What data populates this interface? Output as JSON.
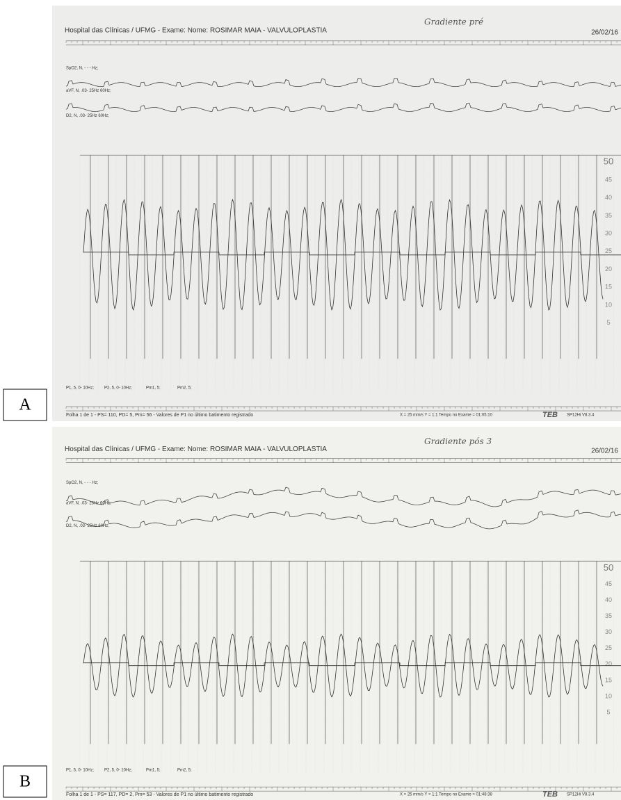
{
  "panels": [
    {
      "label": "A",
      "header": "Hospital das Clínicas / UFMG  -  Exame:  Nome: ROSIMAR MAIA  -  VALVULOPLASTIA",
      "handwritten": "Gradiente pré",
      "date": "26/02/16",
      "channels": [
        "SpO2, N, - - - Hz;",
        "aVF, N, .03- 25Hz 60Hz;",
        "D2, N, .03- 25Hz 60Hz;"
      ],
      "scale_labels": [
        "50",
        "45",
        "40",
        "35",
        "30",
        "25",
        "20",
        "15",
        "10",
        "5"
      ],
      "pressure_channels": [
        "P1, 5, 0- 10Hz;",
        "P2, 5, 0- 10Hz;",
        "Pm1, 5;",
        "Pm2, 5;"
      ],
      "footer": "Folha 1 de 1 - PS= 110, PD=  5, Pm=  56  -  Valores de  P1 no último batimento registrado",
      "settings": "X =  25 mm/s   Y = 1:1   Tempo no Exame = 01:05:10",
      "logo": "TEB",
      "version": "SP12Hi V8.3.4"
    },
    {
      "label": "B",
      "header": "Hospital das Clínicas / UFMG  -  Exame:  Nome: ROSIMAR MAIA  -  VALVULOPLASTIA",
      "handwritten": "Gradiente pós 3",
      "date": "26/02/16",
      "channels": [
        "SpO2, N, - - - Hz;",
        "aVF, N, .03- 25Hz 60Hz;",
        "D2, N, .03- 25Hz 60Hz;"
      ],
      "scale_labels": [
        "50",
        "45",
        "40",
        "35",
        "30",
        "25",
        "20",
        "15",
        "10",
        "5"
      ],
      "pressure_channels": [
        "P1, 5, 0- 10Hz;",
        "P2, 5, 0- 10Hz;",
        "Pm1, 5;",
        "Pm2, 5;"
      ],
      "footer": "Folha 1 de 1 - PS= 117, PD=  2, Pm=  53  -  Valores de  P1 no último batimento registrado",
      "settings": "X =  25 mm/s   Y = 1:1   Tempo no Exame = 01:48:38",
      "logo": "TEB",
      "version": "SP12Hi V8.3.4"
    }
  ]
}
